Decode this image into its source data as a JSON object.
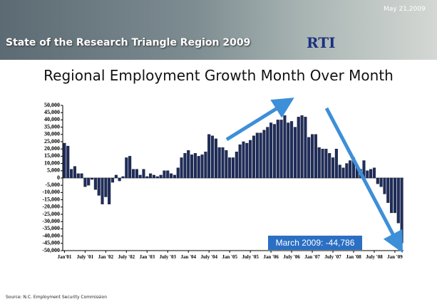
{
  "header": {
    "title": "State of the Research Triangle Region 2009",
    "date": "May 21,2009",
    "logo": "RTI"
  },
  "chart_data": {
    "type": "bar",
    "title": "Regional Employment Growth Month Over Month",
    "annotation": "March 2009: -44,786",
    "color": "#1f2d5c",
    "categories": [
      "Jan'01",
      null,
      null,
      null,
      null,
      null,
      "July '01",
      null,
      null,
      null,
      null,
      null,
      "Jan '02",
      null,
      null,
      null,
      null,
      null,
      "July '02",
      null,
      null,
      null,
      null,
      null,
      "Jan '03",
      null,
      null,
      null,
      null,
      null,
      "July '03",
      null,
      null,
      null,
      null,
      null,
      "Jan '04",
      null,
      null,
      null,
      null,
      null,
      "July '04",
      null,
      null,
      null,
      null,
      null,
      "Jan '05",
      null,
      null,
      null,
      null,
      null,
      "July '05",
      null,
      null,
      null,
      null,
      null,
      "Jan '06",
      null,
      null,
      null,
      null,
      null,
      "July '06",
      null,
      null,
      null,
      null,
      null,
      "Jan '07",
      null,
      null,
      null,
      null,
      null,
      "July '07",
      null,
      null,
      null,
      null,
      null,
      "Jan '08",
      null,
      null,
      null,
      null,
      null,
      "July '08",
      null,
      null,
      null,
      null,
      null,
      "Jan '09",
      null,
      null
    ],
    "values": [
      24000,
      22000,
      6000,
      8000,
      3000,
      3000,
      -6000,
      -5000,
      -1000,
      -8000,
      -12000,
      -18000,
      -13000,
      -18000,
      -3000,
      2000,
      -2000,
      1000,
      14000,
      15000,
      6000,
      6000,
      2000,
      6000,
      1000,
      3000,
      2000,
      1000,
      2000,
      5000,
      5000,
      3000,
      2000,
      7000,
      14000,
      17000,
      19000,
      16000,
      17000,
      15000,
      16000,
      18000,
      30000,
      29000,
      27000,
      21000,
      21000,
      19000,
      14000,
      14000,
      18000,
      23000,
      25000,
      24000,
      26000,
      29000,
      31000,
      31000,
      33000,
      35000,
      38000,
      37000,
      40000,
      40000,
      43000,
      38000,
      39000,
      35000,
      42000,
      43000,
      42000,
      28000,
      30000,
      30000,
      21000,
      20000,
      20000,
      17000,
      14000,
      20000,
      9000,
      7000,
      10000,
      12000,
      14000,
      9000,
      6000,
      12000,
      5000,
      6000,
      7000,
      -4000,
      -6000,
      -11000,
      -17000,
      -24000,
      -24000,
      -31000,
      -44786
    ],
    "ylim": [
      -50000,
      50000
    ],
    "yticks": [
      {
        "value": -50000,
        "label": "-50,000"
      },
      {
        "value": -45000,
        "label": "-45,000"
      },
      {
        "value": -40000,
        "label": "-40,000"
      },
      {
        "value": -35000,
        "label": "-35,000"
      },
      {
        "value": -30000,
        "label": "-30,000"
      },
      {
        "value": -25000,
        "label": "-25,000"
      },
      {
        "value": -20000,
        "label": "-20,000"
      },
      {
        "value": -15000,
        "label": "-15,000"
      },
      {
        "value": -10000,
        "label": "-10,000"
      },
      {
        "value": -5000,
        "label": "-5,000"
      },
      0,
      {
        "value": 5000,
        "label": "5,000"
      },
      {
        "value": 10000,
        "label": "10,000"
      },
      {
        "value": 15000,
        "label": "15,000"
      },
      {
        "value": 20000,
        "label": "20,000"
      },
      {
        "value": 25000,
        "label": "25,000"
      },
      {
        "value": 30000,
        "label": "30,000"
      },
      {
        "value": 35000,
        "label": "35,000"
      },
      {
        "value": 40000,
        "label": "40,000"
      },
      {
        "value": 45000,
        "label": "45,000"
      },
      {
        "value": 50000,
        "label": "50,000"
      }
    ],
    "grid": false
  },
  "footer": {
    "source": "Source: N.C. Employment Security Commission"
  }
}
